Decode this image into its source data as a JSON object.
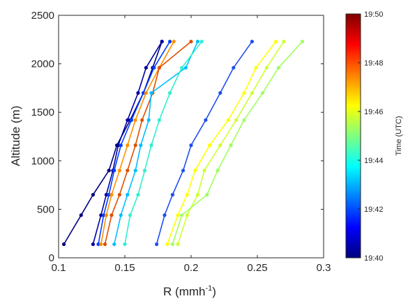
{
  "chart_data": {
    "type": "line",
    "xlabel": "R (mmh",
    "xlabel_sup": "-1",
    "xlabel_close": ")",
    "ylabel": "Altitude (m)",
    "xlim": [
      0.1,
      0.3
    ],
    "ylim": [
      0,
      2500
    ],
    "xticks": [
      "0.1",
      "0.15",
      "0.2",
      "0.25",
      "0.3"
    ],
    "xtick_values": [
      0.1,
      0.15,
      0.2,
      0.25,
      0.3
    ],
    "yticks": [
      "0",
      "500",
      "1000",
      "1500",
      "2000",
      "2500"
    ],
    "ytick_values": [
      0,
      500,
      1000,
      1500,
      2000,
      2500
    ],
    "grid": false,
    "colorbar": {
      "title": "Time (UTC)",
      "range": [
        0,
        1
      ],
      "tick_labels": [
        "19:40",
        "19:42",
        "19:44",
        "19:46",
        "19:48",
        "19:50"
      ],
      "tick_values": [
        0,
        0.2,
        0.4,
        0.6,
        0.8,
        1.0
      ]
    },
    "altitudes": [
      140,
      440,
      650,
      900,
      1160,
      1420,
      1700,
      1960,
      2230
    ],
    "series": [
      {
        "color": "#00007F",
        "x": [
          0.104,
          0.117,
          0.126,
          0.138,
          0.144,
          0.154,
          0.164,
          0.171,
          0.178
        ]
      },
      {
        "color": "#00009F",
        "x": [
          0.126,
          0.132,
          0.136,
          0.141,
          0.145,
          0.152,
          0.16,
          0.166,
          0.178
        ]
      },
      {
        "color": "#003FFF",
        "x": [
          0.13,
          0.134,
          0.138,
          0.142,
          0.147,
          0.155,
          0.164,
          0.172,
          0.184
        ]
      },
      {
        "color": "#FF8F00",
        "x": [
          0.132,
          0.136,
          0.14,
          0.146,
          0.152,
          0.158,
          0.166,
          0.176,
          0.187
        ]
      },
      {
        "color": "#DF4F00",
        "x": [
          0.135,
          0.14,
          0.146,
          0.152,
          0.158,
          0.163,
          0.171,
          0.176,
          0.2
        ]
      },
      {
        "color": "#00BFFF",
        "x": [
          0.142,
          0.147,
          0.152,
          0.158,
          0.162,
          0.168,
          0.17,
          0.196,
          0.205
        ]
      },
      {
        "color": "#2FEFCF",
        "x": [
          0.15,
          0.154,
          0.16,
          0.165,
          0.17,
          0.176,
          0.184,
          0.193,
          0.208
        ]
      },
      {
        "color": "#1F4FEF",
        "x": [
          0.174,
          0.18,
          0.186,
          0.194,
          0.2,
          0.211,
          0.222,
          0.232,
          0.246
        ]
      },
      {
        "color": "#FFFF00",
        "x": [
          0.182,
          0.19,
          0.197,
          0.203,
          0.214,
          0.228,
          0.24,
          0.249,
          0.264
        ]
      },
      {
        "color": "#CFFF2F",
        "x": [
          0.19,
          0.197,
          0.205,
          0.21,
          0.222,
          0.234,
          0.246,
          0.257,
          0.27
        ]
      },
      {
        "color": "#9FFF5F",
        "x": [
          0.186,
          0.193,
          0.212,
          0.22,
          0.23,
          0.24,
          0.254,
          0.266,
          0.284
        ]
      }
    ]
  }
}
